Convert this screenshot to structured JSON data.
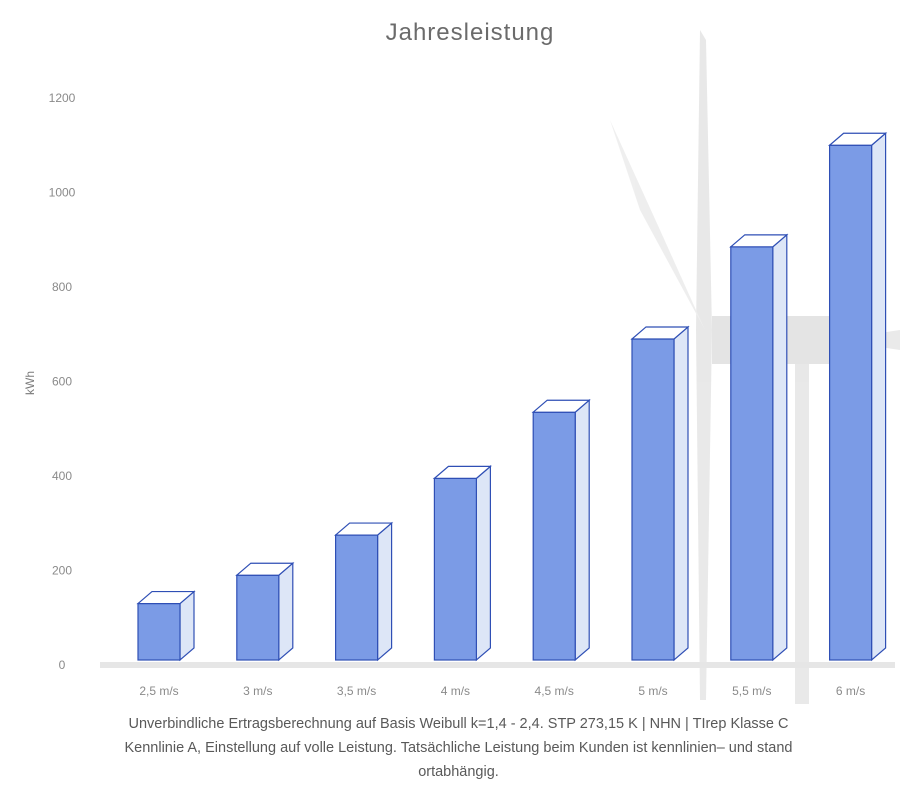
{
  "chart_data": {
    "type": "bar",
    "title": "Jahresleistung",
    "xlabel": "",
    "ylabel": "kWh",
    "categories": [
      "2,5 m/s",
      "3 m/s",
      "3,5 m/s",
      "4 m/s",
      "4,5 m/s",
      "5 m/s",
      "5,5 m/s",
      "6 m/s"
    ],
    "values": [
      130,
      190,
      275,
      395,
      535,
      690,
      885,
      1100
    ],
    "ylim": [
      0,
      1200
    ],
    "yticks": [
      0,
      200,
      400,
      600,
      800,
      1000,
      1200
    ],
    "grid": false,
    "style": "3d-column",
    "colors": {
      "bar_front": "#7b9be6",
      "bar_side": "#dde6f7",
      "bar_top": "#ffffff",
      "bar_edge": "#2f4fb5"
    }
  },
  "footnote": {
    "line1": "Unverbindliche Ertragsberechnung auf Basis Weibull k=1,4 - 2,4. STP 273,15 K | NHN | TIrep Klasse C",
    "line2": "Kennlinie A, Einstellung auf volle Leistung. Tatsächliche Leistung beim Kunden ist kennlinien– und stand",
    "line3": "ortabhängig."
  }
}
